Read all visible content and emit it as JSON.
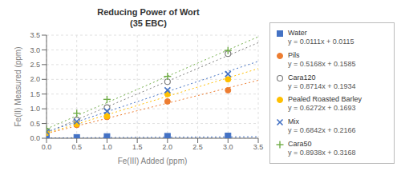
{
  "chart_data": {
    "type": "scatter",
    "title": "Reducing Power of Wort\n(35 EBC)",
    "xlabel": "Fe(III) Added (ppm)",
    "ylabel": "Fe(II) Measured (ppm)",
    "xlim": [
      0.0,
      3.5
    ],
    "ylim": [
      0.0,
      3.5
    ],
    "xticks": [
      {
        "value": 0,
        "label": "0.0"
      },
      0.5,
      {
        "value": 1,
        "label": "1.0"
      },
      1.5,
      {
        "value": 2,
        "label": "2.0"
      },
      2.5,
      {
        "value": 3,
        "label": "3.0"
      },
      3.5
    ],
    "yticks": [
      {
        "value": 0,
        "label": "0.0"
      },
      0.5,
      {
        "value": 1,
        "label": "1.0"
      },
      1.5,
      {
        "value": 2,
        "label": "2.0"
      },
      2.5,
      {
        "value": 3,
        "label": "3.0"
      },
      3.5
    ],
    "grid": true,
    "legend": "right",
    "series": [
      {
        "name": "Water",
        "equation": "y = 0.0111x + 0.0115",
        "color": "#4472C4",
        "marker": "square",
        "x": [
          0.0,
          0.5,
          1.0,
          2.0,
          3.0
        ],
        "values": [
          0.02,
          0.03,
          0.06,
          0.07,
          0.08
        ],
        "trendline": {
          "line_style": "dotted",
          "x": [
            0.0,
            3.5
          ],
          "values": [
            0.0115,
            0.05035
          ]
        }
      },
      {
        "name": "Pils",
        "equation": "y = 0.5168x + 0.1585",
        "color": "#ED7D31",
        "marker": "circle",
        "x": [
          0.0,
          0.5,
          1.0,
          2.0,
          3.0
        ],
        "values": [
          0.22,
          0.45,
          0.72,
          1.25,
          1.63
        ],
        "trendline": {
          "line_style": "dotted",
          "x": [
            0.0,
            3.5
          ],
          "values": [
            0.1585,
            1.9673
          ]
        }
      },
      {
        "name": "Cara120",
        "equation": "y = 0.8714x + 0.1934",
        "color": "#808080",
        "marker": "open_circle",
        "x": [
          0.0,
          0.5,
          1.0,
          2.0,
          3.0
        ],
        "values": [
          0.23,
          0.62,
          1.04,
          1.92,
          2.87
        ],
        "trendline": {
          "line_style": "dotted",
          "x": [
            0.0,
            3.5
          ],
          "values": [
            0.1934,
            3.2433
          ]
        }
      },
      {
        "name": "Pealed Roasted Barley",
        "equation": "y = 0.6272x + 0.1693",
        "color": "#FFC000",
        "marker": "circle",
        "x": [
          0.0,
          0.5,
          1.0,
          2.0,
          3.0
        ],
        "values": [
          0.18,
          0.48,
          0.75,
          1.5,
          2.0
        ],
        "trendline": {
          "line_style": "dotted",
          "x": [
            0.0,
            3.5
          ],
          "values": [
            0.1693,
            2.3645
          ]
        }
      },
      {
        "name": "Mix",
        "equation": "y = 0.6842x + 0.2166",
        "color": "#4472C4",
        "marker": "x",
        "x": [
          0.0,
          0.5,
          1.0,
          2.0,
          3.0
        ],
        "values": [
          0.22,
          0.57,
          0.92,
          1.63,
          2.18
        ],
        "trendline": {
          "line_style": "dotted",
          "x": [
            0.0,
            3.5
          ],
          "values": [
            0.2166,
            2.6113
          ]
        }
      },
      {
        "name": "Cara50",
        "equation": "y = 0.8938x + 0.3168",
        "color": "#70AD47",
        "marker": "plus",
        "x": [
          0.0,
          0.5,
          1.0,
          2.0,
          3.0
        ],
        "values": [
          0.32,
          0.85,
          1.32,
          2.1,
          2.98
        ],
        "trendline": {
          "line_style": "dotted",
          "x": [
            0.0,
            3.5
          ],
          "values": [
            0.3168,
            3.4451
          ]
        }
      }
    ]
  }
}
